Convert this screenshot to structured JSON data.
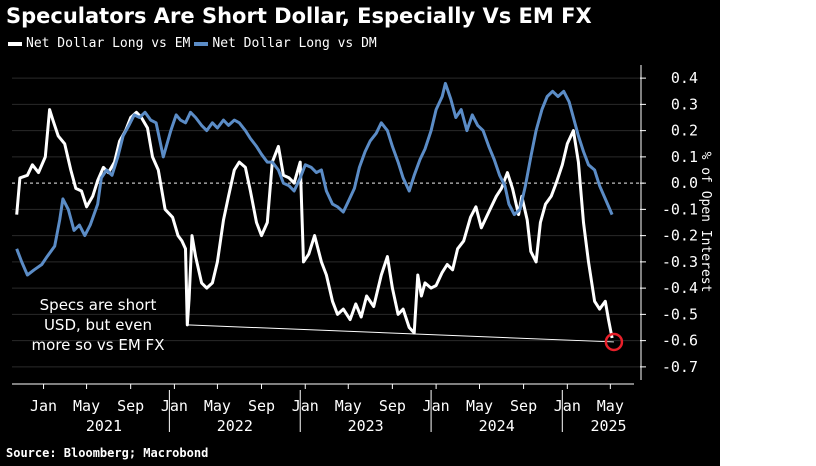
{
  "chart_data": {
    "type": "line",
    "title": "Speculators Are Short Dollar, Especially Vs EM FX",
    "source": "Source: Bloomberg; Macrobond",
    "ylabel": "% of Open Interest",
    "ylim": [
      -0.75,
      0.45
    ],
    "yticks": [
      "0.4",
      "0.3",
      "0.2",
      "0.1",
      "0.0",
      "-0.1",
      "-0.2",
      "-0.3",
      "-0.4",
      "-0.5",
      "-0.6",
      "-0.7"
    ],
    "x_month_labels": [
      "Jan",
      "May",
      "Sep",
      "Jan",
      "May",
      "Sep",
      "Jan",
      "May",
      "Sep",
      "Jan",
      "May",
      "Sep",
      "Jan",
      "May"
    ],
    "x_year_labels": [
      "2021",
      "2022",
      "2023",
      "2024",
      "2025"
    ],
    "legend_position": "top-left",
    "annotation": {
      "lines": [
        "Specs are short",
        "USD, but even",
        "more so vs EM FX"
      ],
      "from": {
        "x": "2022-02-20",
        "y": -0.54
      },
      "to": {
        "x": "2025-05-25",
        "y": -0.605
      }
    },
    "series": [
      {
        "name": "Net Dollar Long vs EM",
        "color": "#ffffff",
        "points": [
          [
            "2020-11-01",
            -0.12
          ],
          [
            "2020-11-10",
            0.02
          ],
          [
            "2020-12-01",
            0.03
          ],
          [
            "2020-12-15",
            0.07
          ],
          [
            "2021-01-01",
            0.04
          ],
          [
            "2021-01-20",
            0.1
          ],
          [
            "2021-02-01",
            0.28
          ],
          [
            "2021-02-10",
            0.24
          ],
          [
            "2021-02-25",
            0.18
          ],
          [
            "2021-03-15",
            0.15
          ],
          [
            "2021-04-01",
            0.05
          ],
          [
            "2021-04-15",
            -0.02
          ],
          [
            "2021-05-01",
            -0.03
          ],
          [
            "2021-05-15",
            -0.09
          ],
          [
            "2021-06-01",
            -0.05
          ],
          [
            "2021-06-15",
            0.01
          ],
          [
            "2021-07-01",
            0.06
          ],
          [
            "2021-07-15",
            0.04
          ],
          [
            "2021-08-01",
            0.08
          ],
          [
            "2021-08-15",
            0.16
          ],
          [
            "2021-09-01",
            0.2
          ],
          [
            "2021-09-15",
            0.25
          ],
          [
            "2021-10-01",
            0.27
          ],
          [
            "2021-10-15",
            0.25
          ],
          [
            "2021-11-01",
            0.21
          ],
          [
            "2021-11-15",
            0.1
          ],
          [
            "2021-12-01",
            0.05
          ],
          [
            "2021-12-20",
            -0.1
          ],
          [
            "2022-01-10",
            -0.13
          ],
          [
            "2022-01-25",
            -0.2
          ],
          [
            "2022-02-05",
            -0.22
          ],
          [
            "2022-02-15",
            -0.25
          ],
          [
            "2022-02-20",
            -0.54
          ],
          [
            "2022-02-25",
            -0.44
          ],
          [
            "2022-03-05",
            -0.2
          ],
          [
            "2022-03-15",
            -0.28
          ],
          [
            "2022-04-01",
            -0.38
          ],
          [
            "2022-04-15",
            -0.4
          ],
          [
            "2022-05-01",
            -0.38
          ],
          [
            "2022-05-15",
            -0.3
          ],
          [
            "2022-06-01",
            -0.14
          ],
          [
            "2022-06-15",
            -0.05
          ],
          [
            "2022-07-01",
            0.05
          ],
          [
            "2022-07-15",
            0.08
          ],
          [
            "2022-08-01",
            0.06
          ],
          [
            "2022-08-15",
            -0.03
          ],
          [
            "2022-09-01",
            -0.15
          ],
          [
            "2022-09-15",
            -0.2
          ],
          [
            "2022-10-01",
            -0.15
          ],
          [
            "2022-10-15",
            0.08
          ],
          [
            "2022-11-01",
            0.14
          ],
          [
            "2022-11-15",
            0.03
          ],
          [
            "2022-12-01",
            0.02
          ],
          [
            "2022-12-15",
            0.0
          ],
          [
            "2023-01-01",
            0.08
          ],
          [
            "2023-01-10",
            -0.3
          ],
          [
            "2023-01-25",
            -0.27
          ],
          [
            "2023-02-10",
            -0.2
          ],
          [
            "2023-03-01",
            -0.3
          ],
          [
            "2023-03-15",
            -0.35
          ],
          [
            "2023-04-01",
            -0.45
          ],
          [
            "2023-04-15",
            -0.5
          ],
          [
            "2023-05-01",
            -0.48
          ],
          [
            "2023-05-20",
            -0.52
          ],
          [
            "2023-06-05",
            -0.46
          ],
          [
            "2023-06-20",
            -0.51
          ],
          [
            "2023-07-05",
            -0.43
          ],
          [
            "2023-07-25",
            -0.47
          ],
          [
            "2023-08-15",
            -0.35
          ],
          [
            "2023-09-01",
            -0.28
          ],
          [
            "2023-09-15",
            -0.4
          ],
          [
            "2023-10-01",
            -0.5
          ],
          [
            "2023-10-15",
            -0.48
          ],
          [
            "2023-11-01",
            -0.55
          ],
          [
            "2023-11-15",
            -0.57
          ],
          [
            "2023-11-25",
            -0.35
          ],
          [
            "2023-12-05",
            -0.43
          ],
          [
            "2023-12-15",
            -0.38
          ],
          [
            "2024-01-01",
            -0.4
          ],
          [
            "2024-01-15",
            -0.39
          ],
          [
            "2024-02-01",
            -0.34
          ],
          [
            "2024-02-15",
            -0.31
          ],
          [
            "2024-03-01",
            -0.33
          ],
          [
            "2024-03-15",
            -0.25
          ],
          [
            "2024-04-01",
            -0.22
          ],
          [
            "2024-04-20",
            -0.13
          ],
          [
            "2024-05-05",
            -0.09
          ],
          [
            "2024-05-20",
            -0.17
          ],
          [
            "2024-06-10",
            -0.11
          ],
          [
            "2024-07-01",
            -0.05
          ],
          [
            "2024-07-15",
            -0.02
          ],
          [
            "2024-08-01",
            0.04
          ],
          [
            "2024-08-15",
            -0.02
          ],
          [
            "2024-09-01",
            -0.12
          ],
          [
            "2024-09-10",
            -0.05
          ],
          [
            "2024-09-25",
            -0.14
          ],
          [
            "2024-10-05",
            -0.26
          ],
          [
            "2024-10-20",
            -0.3
          ],
          [
            "2024-11-01",
            -0.15
          ],
          [
            "2024-11-15",
            -0.08
          ],
          [
            "2024-12-01",
            -0.05
          ],
          [
            "2024-12-15",
            0.0
          ],
          [
            "2025-01-01",
            0.07
          ],
          [
            "2025-01-15",
            0.15
          ],
          [
            "2025-02-01",
            0.2
          ],
          [
            "2025-02-15",
            0.08
          ],
          [
            "2025-03-01",
            -0.15
          ],
          [
            "2025-03-15",
            -0.3
          ],
          [
            "2025-04-01",
            -0.45
          ],
          [
            "2025-04-15",
            -0.48
          ],
          [
            "2025-05-01",
            -0.45
          ],
          [
            "2025-05-10",
            -0.52
          ],
          [
            "2025-05-20",
            -0.59
          ]
        ]
      },
      {
        "name": "Net Dollar Long vs DM",
        "color": "#5b8cc6",
        "points": [
          [
            "2020-11-01",
            -0.25
          ],
          [
            "2020-11-15",
            -0.3
          ],
          [
            "2020-12-01",
            -0.35
          ],
          [
            "2020-12-20",
            -0.33
          ],
          [
            "2021-01-10",
            -0.31
          ],
          [
            "2021-01-25",
            -0.28
          ],
          [
            "2021-02-15",
            -0.24
          ],
          [
            "2021-03-01",
            -0.14
          ],
          [
            "2021-03-10",
            -0.06
          ],
          [
            "2021-03-25",
            -0.1
          ],
          [
            "2021-04-10",
            -0.18
          ],
          [
            "2021-04-25",
            -0.16
          ],
          [
            "2021-05-10",
            -0.2
          ],
          [
            "2021-05-25",
            -0.16
          ],
          [
            "2021-06-15",
            -0.08
          ],
          [
            "2021-06-25",
            0.02
          ],
          [
            "2021-07-10",
            0.05
          ],
          [
            "2021-07-25",
            0.03
          ],
          [
            "2021-08-10",
            0.1
          ],
          [
            "2021-08-25",
            0.18
          ],
          [
            "2021-09-10",
            0.22
          ],
          [
            "2021-09-25",
            0.26
          ],
          [
            "2021-10-10",
            0.25
          ],
          [
            "2021-10-25",
            0.27
          ],
          [
            "2021-11-10",
            0.24
          ],
          [
            "2021-11-25",
            0.23
          ],
          [
            "2021-12-15",
            0.1
          ],
          [
            "2022-01-05",
            0.2
          ],
          [
            "2022-01-20",
            0.26
          ],
          [
            "2022-02-01",
            0.24
          ],
          [
            "2022-02-15",
            0.23
          ],
          [
            "2022-03-01",
            0.27
          ],
          [
            "2022-03-15",
            0.25
          ],
          [
            "2022-04-01",
            0.22
          ],
          [
            "2022-04-15",
            0.2
          ],
          [
            "2022-05-01",
            0.23
          ],
          [
            "2022-05-15",
            0.21
          ],
          [
            "2022-06-01",
            0.24
          ],
          [
            "2022-06-15",
            0.22
          ],
          [
            "2022-07-01",
            0.24
          ],
          [
            "2022-07-15",
            0.23
          ],
          [
            "2022-08-01",
            0.2
          ],
          [
            "2022-08-15",
            0.17
          ],
          [
            "2022-09-01",
            0.14
          ],
          [
            "2022-09-15",
            0.11
          ],
          [
            "2022-10-01",
            0.08
          ],
          [
            "2022-10-15",
            0.08
          ],
          [
            "2022-11-01",
            0.05
          ],
          [
            "2022-11-15",
            0.0
          ],
          [
            "2022-12-01",
            -0.01
          ],
          [
            "2022-12-15",
            -0.03
          ],
          [
            "2023-01-01",
            0.02
          ],
          [
            "2023-01-15",
            0.07
          ],
          [
            "2023-02-01",
            0.06
          ],
          [
            "2023-02-15",
            0.04
          ],
          [
            "2023-03-01",
            0.05
          ],
          [
            "2023-03-15",
            -0.03
          ],
          [
            "2023-04-01",
            -0.08
          ],
          [
            "2023-04-15",
            -0.09
          ],
          [
            "2023-05-01",
            -0.11
          ],
          [
            "2023-05-15",
            -0.07
          ],
          [
            "2023-06-01",
            -0.02
          ],
          [
            "2023-06-15",
            0.06
          ],
          [
            "2023-07-01",
            0.12
          ],
          [
            "2023-07-15",
            0.16
          ],
          [
            "2023-08-01",
            0.19
          ],
          [
            "2023-08-15",
            0.23
          ],
          [
            "2023-09-01",
            0.2
          ],
          [
            "2023-09-15",
            0.14
          ],
          [
            "2023-10-01",
            0.08
          ],
          [
            "2023-10-15",
            0.02
          ],
          [
            "2023-11-01",
            -0.03
          ],
          [
            "2023-11-15",
            0.03
          ],
          [
            "2023-12-01",
            0.09
          ],
          [
            "2023-12-15",
            0.13
          ],
          [
            "2024-01-01",
            0.2
          ],
          [
            "2024-01-15",
            0.28
          ],
          [
            "2024-02-01",
            0.33
          ],
          [
            "2024-02-10",
            0.38
          ],
          [
            "2024-02-25",
            0.32
          ],
          [
            "2024-03-10",
            0.25
          ],
          [
            "2024-03-25",
            0.28
          ],
          [
            "2024-04-10",
            0.2
          ],
          [
            "2024-04-25",
            0.26
          ],
          [
            "2024-05-10",
            0.22
          ],
          [
            "2024-05-25",
            0.2
          ],
          [
            "2024-06-10",
            0.14
          ],
          [
            "2024-06-25",
            0.09
          ],
          [
            "2024-07-10",
            0.03
          ],
          [
            "2024-07-25",
            -0.01
          ],
          [
            "2024-08-05",
            -0.08
          ],
          [
            "2024-08-20",
            -0.12
          ],
          [
            "2024-09-05",
            -0.1
          ],
          [
            "2024-09-20",
            -0.01
          ],
          [
            "2024-10-05",
            0.1
          ],
          [
            "2024-10-20",
            0.2
          ],
          [
            "2024-11-05",
            0.28
          ],
          [
            "2024-11-20",
            0.33
          ],
          [
            "2024-12-05",
            0.35
          ],
          [
            "2024-12-20",
            0.33
          ],
          [
            "2025-01-05",
            0.35
          ],
          [
            "2025-01-20",
            0.31
          ],
          [
            "2025-02-01",
            0.25
          ],
          [
            "2025-02-15",
            0.18
          ],
          [
            "2025-03-01",
            0.12
          ],
          [
            "2025-03-15",
            0.07
          ],
          [
            "2025-04-01",
            0.05
          ],
          [
            "2025-04-15",
            -0.01
          ],
          [
            "2025-05-01",
            -0.06
          ],
          [
            "2025-05-20",
            -0.12
          ]
        ]
      }
    ]
  }
}
